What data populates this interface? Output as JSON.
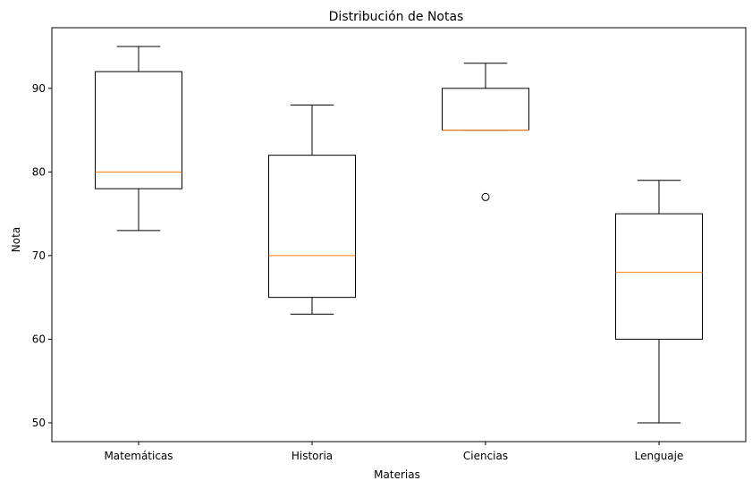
{
  "chart_data": {
    "type": "box",
    "title": "Distribución de Notas",
    "xlabel": "Materias",
    "ylabel": "Nota",
    "ylim": [
      47.75,
      97.25
    ],
    "yticks": [
      50,
      60,
      70,
      80,
      90
    ],
    "grid": false,
    "categories": [
      "Matemáticas",
      "Historia",
      "Ciencias",
      "Lenguaje"
    ],
    "boxes": [
      {
        "whisker_low": 73,
        "q1": 78,
        "median": 80,
        "q3": 92,
        "whisker_high": 95,
        "outliers": []
      },
      {
        "whisker_low": 63,
        "q1": 65,
        "median": 70,
        "q3": 82,
        "whisker_high": 88,
        "outliers": []
      },
      {
        "whisker_low": 85,
        "q1": 85,
        "median": 85,
        "q3": 90,
        "whisker_high": 93,
        "outliers": [
          77
        ]
      },
      {
        "whisker_low": 50,
        "q1": 60,
        "median": 68,
        "q3": 75,
        "whisker_high": 79,
        "outliers": []
      }
    ],
    "colors": {
      "box": "#000000",
      "median": "#ff7f0e"
    }
  }
}
